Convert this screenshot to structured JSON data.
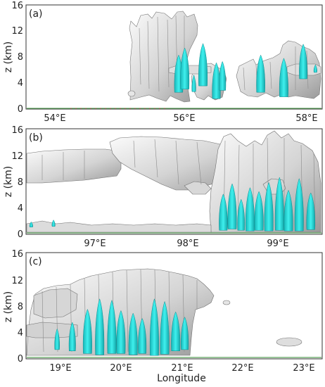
{
  "chart_data": [
    {
      "type": "other",
      "panel_label": "(a)",
      "ylabel": "z (km)",
      "ylim": [
        0,
        16
      ],
      "y_ticks": [
        "0",
        "4",
        "8",
        "12",
        "16"
      ],
      "xlim": [
        53.6,
        58.45
      ],
      "x_ticks": [
        {
          "value": 54,
          "label": "54°E"
        },
        {
          "value": 56,
          "label": "56°E"
        },
        {
          "value": 58,
          "label": "58°E"
        }
      ],
      "cloud_color": "#c8c8c8",
      "core_color": "#2bd8d8",
      "cloud_structures": [
        {
          "lon": [
            55.7,
            56.65
          ],
          "z": [
            0,
            14.6
          ]
        },
        {
          "lon": [
            56.15,
            57.05
          ],
          "z": [
            0,
            8.8
          ]
        },
        {
          "lon": [
            57.2,
            58.45
          ],
          "z": [
            0,
            11.1
          ]
        },
        {
          "lon": [
            55.45,
            55.55
          ],
          "z": [
            2.3,
            3.1
          ]
        }
      ],
      "cyan_cores": [
        {
          "lon": 56.1,
          "zb": 2.5,
          "zt": 8.3
        },
        {
          "lon": 56.2,
          "zb": 3.0,
          "zt": 9.4
        },
        {
          "lon": 56.35,
          "zb": 2.6,
          "zt": 5.2
        },
        {
          "lon": 56.5,
          "zb": 3.5,
          "zt": 10.1
        },
        {
          "lon": 56.72,
          "zb": 1.5,
          "zt": 7.1
        },
        {
          "lon": 56.82,
          "zb": 2.8,
          "zt": 7.3
        },
        {
          "lon": 57.45,
          "zb": 2.5,
          "zt": 8.3
        },
        {
          "lon": 57.83,
          "zb": 1.8,
          "zt": 7.8
        },
        {
          "lon": 58.15,
          "zb": 4.6,
          "zt": 10.0
        },
        {
          "lon": 58.35,
          "zb": 5.6,
          "zt": 6.8
        }
      ]
    },
    {
      "type": "other",
      "panel_label": "(b)",
      "ylabel": "z (km)",
      "ylim": [
        0,
        16
      ],
      "y_ticks": [
        "0",
        "4",
        "8",
        "12",
        "16"
      ],
      "xlim": [
        96.15,
        99.45
      ],
      "x_ticks": [
        {
          "value": 97,
          "label": "97°E"
        },
        {
          "value": 98,
          "label": "98°E"
        },
        {
          "value": 99,
          "label": "99°E"
        }
      ],
      "cloud_color": "#c8c8c8",
      "core_color": "#2bd8d8",
      "cloud_structures": [
        {
          "lon": [
            96.15,
            97.05
          ],
          "z": [
            8.3,
            13.3
          ]
        },
        {
          "lon": [
            97.0,
            98.6
          ],
          "z": [
            8.8,
            15.4
          ]
        },
        {
          "lon": [
            98.25,
            99.45
          ],
          "z": [
            0,
            16.0
          ]
        },
        {
          "lon": [
            96.15,
            98.3
          ],
          "z": [
            0,
            2.2
          ]
        }
      ],
      "cyan_cores": [
        {
          "lon": 98.35,
          "zb": 0.4,
          "zt": 6.0
        },
        {
          "lon": 98.45,
          "zb": 0.6,
          "zt": 7.6
        },
        {
          "lon": 98.55,
          "zb": 0.4,
          "zt": 5.2
        },
        {
          "lon": 98.65,
          "zb": 0.3,
          "zt": 7.0
        },
        {
          "lon": 98.75,
          "zb": 0.4,
          "zt": 6.4
        },
        {
          "lon": 98.86,
          "zb": 0.3,
          "zt": 7.8
        },
        {
          "lon": 98.98,
          "zb": 0.4,
          "zt": 8.6
        },
        {
          "lon": 99.08,
          "zb": 0.3,
          "zt": 6.6
        },
        {
          "lon": 99.2,
          "zb": 0.3,
          "zt": 8.4
        },
        {
          "lon": 99.33,
          "zb": 0.5,
          "zt": 6.2
        },
        {
          "lon": 96.45,
          "zb": 1.0,
          "zt": 2.0
        },
        {
          "lon": 96.2,
          "zb": 0.9,
          "zt": 1.7
        }
      ]
    },
    {
      "type": "other",
      "panel_label": "(c)",
      "ylabel": "z (km)",
      "xlabel": "Longitude",
      "ylim": [
        0,
        16
      ],
      "y_ticks": [
        "0",
        "4",
        "8",
        "12",
        "16"
      ],
      "xlim": [
        18.45,
        23.3
      ],
      "x_ticks": [
        {
          "value": 19,
          "label": "19°E"
        },
        {
          "value": 20,
          "label": "20°E"
        },
        {
          "value": 21,
          "label": "21°E"
        },
        {
          "value": 22,
          "label": "22°E"
        },
        {
          "value": 23,
          "label": "23°E"
        }
      ],
      "cloud_color": "#c8c8c8",
      "core_color": "#2bd8d8",
      "cloud_structures": [
        {
          "lon": [
            18.45,
            21.35
          ],
          "z": [
            0,
            14.1
          ]
        },
        {
          "lon": [
            21.3,
            21.55
          ],
          "z": [
            9.0,
            11.0
          ]
        },
        {
          "lon": [
            22.6,
            23.05
          ],
          "z": [
            2.0,
            3.6
          ]
        },
        {
          "lon": [
            21.9,
            22.0
          ],
          "z": [
            8.0,
            8.8
          ]
        }
      ],
      "cyan_cores": [
        {
          "lon": 18.95,
          "zb": 1.2,
          "zt": 4.4
        },
        {
          "lon": 19.2,
          "zb": 1.0,
          "zt": 5.4
        },
        {
          "lon": 19.45,
          "zb": 0.6,
          "zt": 7.4
        },
        {
          "lon": 19.65,
          "zb": 0.4,
          "zt": 9.0
        },
        {
          "lon": 19.85,
          "zb": 0.6,
          "zt": 8.8
        },
        {
          "lon": 20.0,
          "zb": 0.6,
          "zt": 7.2
        },
        {
          "lon": 20.2,
          "zb": 0.4,
          "zt": 6.8
        },
        {
          "lon": 20.35,
          "zb": 0.6,
          "zt": 6.0
        },
        {
          "lon": 20.55,
          "zb": 0.3,
          "zt": 9.0
        },
        {
          "lon": 20.72,
          "zb": 0.5,
          "zt": 8.6
        },
        {
          "lon": 20.9,
          "zb": 1.0,
          "zt": 7.0
        },
        {
          "lon": 21.05,
          "zb": 1.2,
          "zt": 6.2
        }
      ]
    }
  ]
}
